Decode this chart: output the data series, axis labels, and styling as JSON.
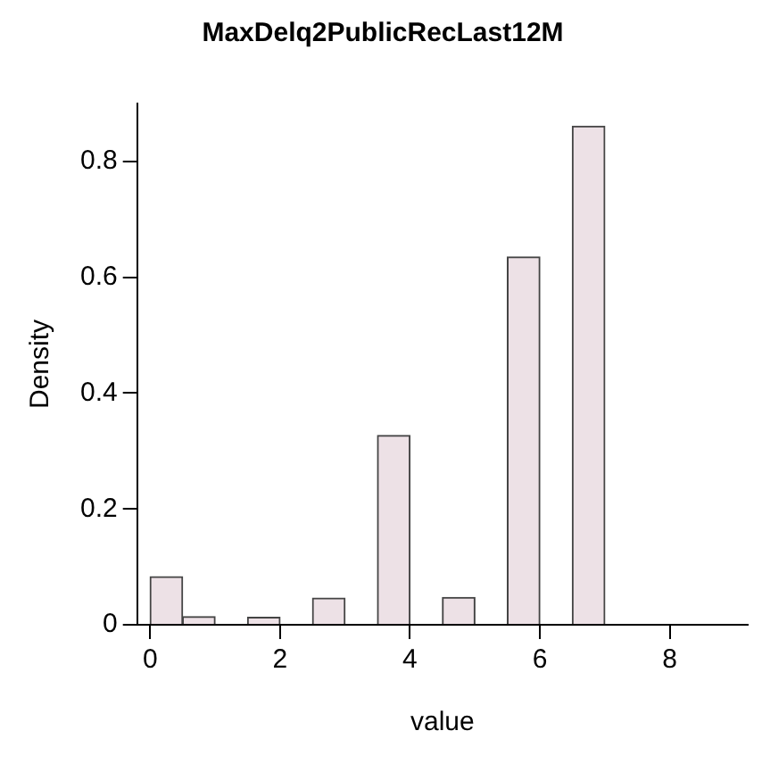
{
  "chart_data": {
    "type": "histogram",
    "title": "MaxDelq2PublicRecLast12M",
    "xlabel": "value",
    "ylabel": "Density",
    "bins": [
      0,
      0.5,
      1,
      1.5,
      2,
      2.5,
      3,
      3.5,
      4,
      4.5,
      5,
      5.5,
      6,
      6.5,
      7,
      7.5,
      8,
      8.5,
      9
    ],
    "values": [
      0.083,
      0.014,
      0,
      0.013,
      0,
      0.046,
      0,
      0.327,
      0,
      0.047,
      0,
      0.635,
      0,
      0.861,
      0,
      0,
      0,
      null
    ],
    "color": "#ede1e6",
    "xlim": [
      -0.2,
      9.2
    ],
    "xticks": [
      0,
      2,
      4,
      6,
      8
    ],
    "ylim": [
      0,
      0.9
    ],
    "yticks": [
      0,
      0.2,
      0.4,
      0.6,
      0.8
    ],
    "grid": false
  }
}
